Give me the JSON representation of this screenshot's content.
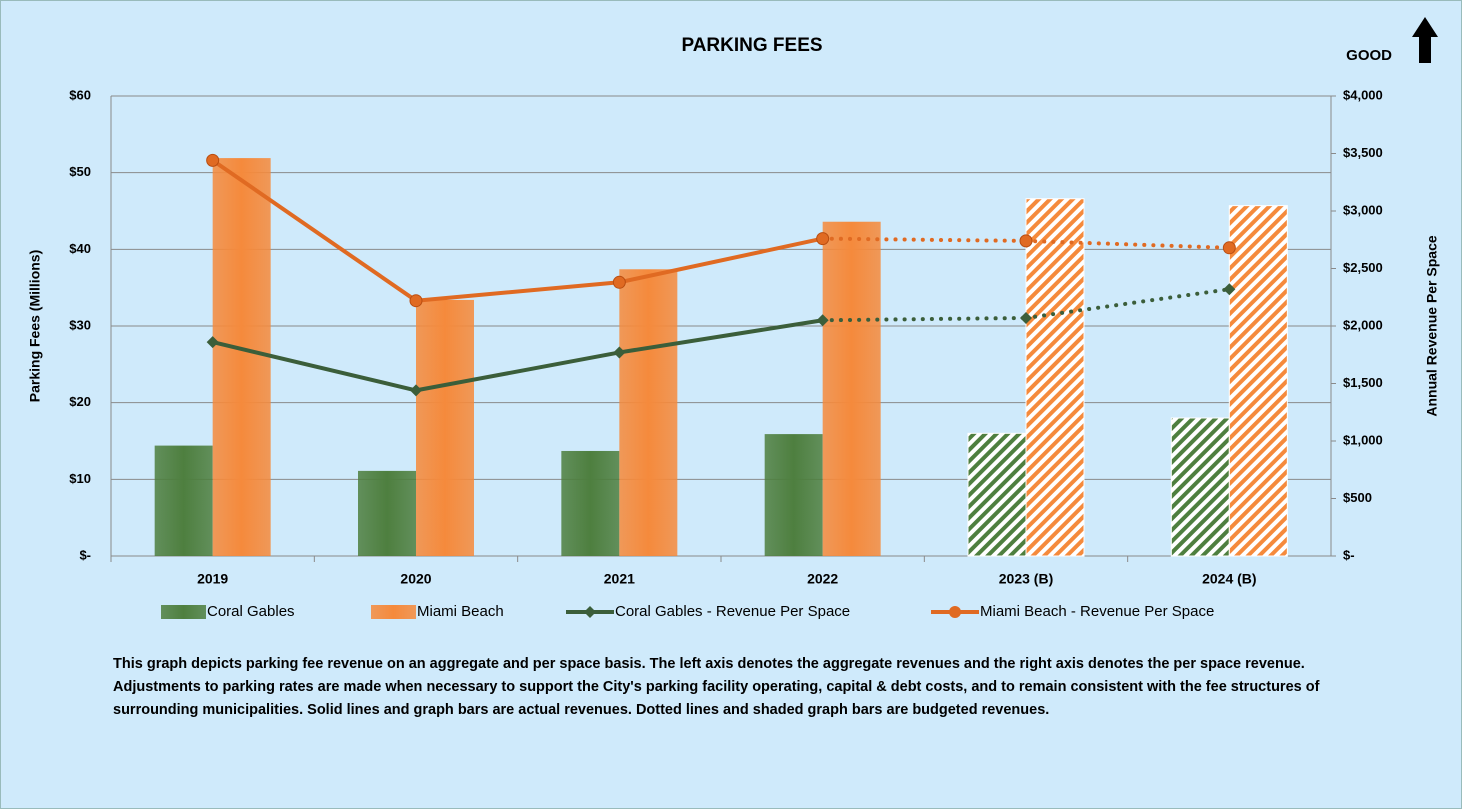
{
  "chart_data": {
    "type": "bar",
    "title": "PARKING FEES",
    "badge": "GOOD",
    "ylabel": "Parking Fees (Millions)",
    "y2label": "Annual Revenue Per Space",
    "categories": [
      "2019",
      "2020",
      "2021",
      "2022",
      "2023 (B)",
      "2024 (B)"
    ],
    "patterned": [
      false,
      false,
      false,
      false,
      true,
      true
    ],
    "series": [
      {
        "name": "Coral Gables",
        "type": "bar",
        "color": "#4e7f3f",
        "values": [
          14.4,
          11.1,
          13.7,
          15.9,
          16.0,
          18.0
        ]
      },
      {
        "name": "Miami Beach",
        "type": "bar",
        "color": "#f58a3c",
        "values": [
          51.9,
          33.4,
          37.4,
          43.6,
          46.6,
          45.7
        ]
      },
      {
        "name": "Coral Gables - Revenue Per Space",
        "type": "line",
        "axis": "y2",
        "marker": "diamond",
        "color": "#3b5e3a",
        "values": [
          1860,
          1440,
          1770,
          2050,
          2070,
          2320
        ]
      },
      {
        "name": "Miami Beach - Revenue Per Space",
        "type": "line",
        "axis": "y2",
        "marker": "circle",
        "color": "#e06a22",
        "values": [
          3440,
          2220,
          2380,
          2760,
          2740,
          2680
        ]
      }
    ],
    "ylim": [
      0,
      60
    ],
    "yticks": [
      {
        "value": 0,
        "label": "$-"
      },
      {
        "value": 10,
        "label": "$10"
      },
      {
        "value": 20,
        "label": "$20"
      },
      {
        "value": 30,
        "label": "$30"
      },
      {
        "value": 40,
        "label": "$40"
      },
      {
        "value": 50,
        "label": "$50"
      },
      {
        "value": 60,
        "label": "$60"
      }
    ],
    "y2lim": [
      0,
      4000
    ],
    "y2ticks": [
      {
        "value": 0,
        "label": "$-"
      },
      {
        "value": 500,
        "label": "$500"
      },
      {
        "value": 1000,
        "label": "$1,000"
      },
      {
        "value": 1500,
        "label": "$1,500"
      },
      {
        "value": 2000,
        "label": "$2,000"
      },
      {
        "value": 2500,
        "label": "$2,500"
      },
      {
        "value": 3000,
        "label": "$3,000"
      },
      {
        "value": 3500,
        "label": "$3,500"
      },
      {
        "value": 4000,
        "label": "$4,000"
      }
    ],
    "grid": true,
    "legend": "bottom",
    "note": "This graph depicts parking fee revenue on an aggregate and per space basis.  The left axis denotes the aggregate revenues and the right axis denotes the per space revenue.  Adjustments to parking rates are made when necessary to support the City's parking facility operating, capital & debt costs, and to remain consistent with the fee structures of surrounding municipalities.  Solid lines and graph bars are actual revenues.  Dotted lines and shaded graph bars are budgeted revenues."
  }
}
